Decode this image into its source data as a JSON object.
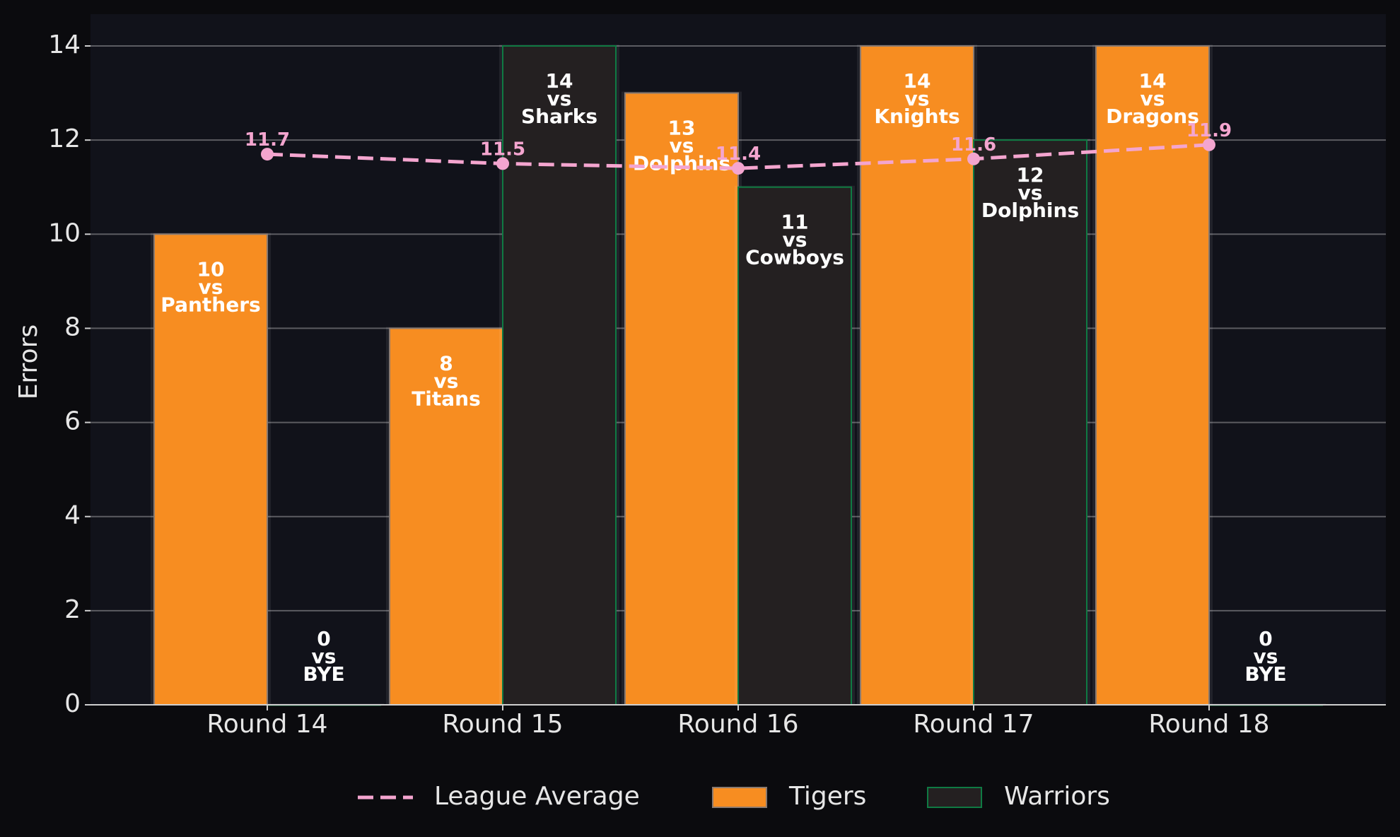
{
  "chart_data": {
    "type": "bar",
    "title": "",
    "xlabel": "",
    "ylabel": "Errors",
    "ylim": [
      0,
      14
    ],
    "yticks": [
      0,
      2,
      4,
      6,
      8,
      10,
      12,
      14
    ],
    "grid": true,
    "categories": [
      "Round 14",
      "Round 15",
      "Round 16",
      "Round 17",
      "Round 18"
    ],
    "series": [
      {
        "name": "Tigers",
        "color": "#f78d21",
        "values": [
          10,
          8,
          13,
          14,
          14
        ],
        "opponents": [
          "Panthers",
          "Titans",
          "Dolphins",
          "Knights",
          "Dragons"
        ]
      },
      {
        "name": "Warriors",
        "color": "#242021",
        "edge": "#0f7a43",
        "values": [
          0,
          14,
          11,
          12,
          0
        ],
        "opponents": [
          "BYE",
          "Sharks",
          "Cowboys",
          "Dolphins",
          "BYE"
        ]
      }
    ],
    "line": {
      "name": "League Average",
      "color": "#f4a5cf",
      "style": "dashed",
      "values": [
        11.7,
        11.5,
        11.4,
        11.6,
        11.9
      ],
      "labels": [
        "11.7",
        "11.5",
        "11.4",
        "11.6",
        "11.9"
      ]
    },
    "vs_word": "vs",
    "legend": {
      "position": "bottom-center",
      "items": [
        "League Average",
        "Tigers",
        "Warriors"
      ]
    }
  }
}
